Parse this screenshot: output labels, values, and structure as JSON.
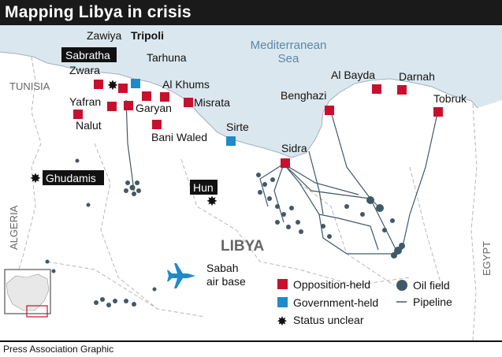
{
  "title": "Mapping Libya in crisis",
  "credit": "Press Association Graphic",
  "colors": {
    "opposition": "#c8102e",
    "government": "#1f8ac9",
    "sea": "#dbe7ee",
    "land": "#ffffff",
    "oil": "#3f5968",
    "pipeline": "#3f5968",
    "plane": "#1f8ac9"
  },
  "sea_label": [
    "Mediterranean",
    "Sea"
  ],
  "country_labels": {
    "libya": "LIBYA",
    "tunisia": "TUNISIA",
    "algeria": "ALGERIA",
    "egypt": "EGYPT"
  },
  "cities": [
    {
      "id": "zawiya",
      "name": "Zawiya",
      "status": "opposition"
    },
    {
      "id": "tripoli",
      "name": "Tripoli",
      "status": "government"
    },
    {
      "id": "sabratha",
      "name": "Sabratha",
      "status": "unclear"
    },
    {
      "id": "tarhuna",
      "name": "Tarhuna",
      "status": "opposition"
    },
    {
      "id": "zwara",
      "name": "Zwara",
      "status": "opposition"
    },
    {
      "id": "al-khums",
      "name": "Al Khums",
      "status": "opposition"
    },
    {
      "id": "yafran",
      "name": "Yafran",
      "status": "opposition"
    },
    {
      "id": "misrata",
      "name": "Misrata",
      "status": "opposition"
    },
    {
      "id": "garyan",
      "name": "Garyan",
      "status": "opposition"
    },
    {
      "id": "nalut",
      "name": "Nalut",
      "status": "opposition"
    },
    {
      "id": "bani-waled",
      "name": "Bani Waled",
      "status": "opposition"
    },
    {
      "id": "sirte",
      "name": "Sirte",
      "status": "government"
    },
    {
      "id": "sidra",
      "name": "Sidra",
      "status": "opposition"
    },
    {
      "id": "benghazi",
      "name": "Benghazi",
      "status": "opposition"
    },
    {
      "id": "al-bayda",
      "name": "Al Bayda",
      "status": "opposition"
    },
    {
      "id": "darnah",
      "name": "Darnah",
      "status": "opposition"
    },
    {
      "id": "tobruk",
      "name": "Tobruk",
      "status": "opposition"
    },
    {
      "id": "ghudamis",
      "name": "Ghudamis",
      "status": "unclear"
    },
    {
      "id": "hun",
      "name": "Hun",
      "status": "unclear"
    }
  ],
  "air_base": {
    "name": [
      "Sabah",
      "air base"
    ],
    "icon": "fighter-jet-icon"
  },
  "legend": {
    "opposition": "Opposition-held",
    "government": "Government-held",
    "unclear": "Status unclear",
    "oil": "Oil field",
    "pipeline": "Pipeline"
  }
}
